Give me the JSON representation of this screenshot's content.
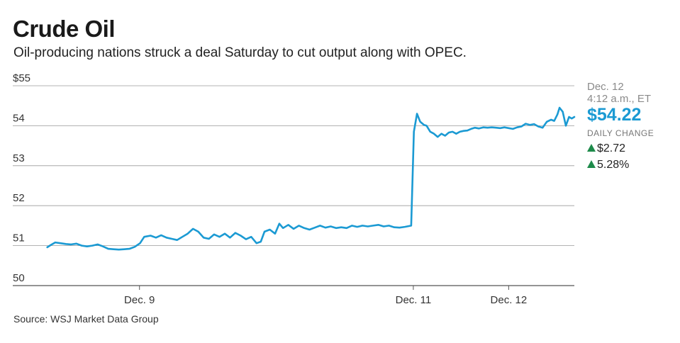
{
  "title": "Crude Oil",
  "subtitle": "Oil-producing nations struck a deal Saturday to cut output along with OPEC.",
  "source": "Source: WSJ Market Data Group",
  "sidebar": {
    "date": "Dec. 12",
    "time": "4:12 a.m., ET",
    "price": "$54.22",
    "daily_change_label": "DAILY CHANGE",
    "change_dollar": "$2.72",
    "change_percent": "5.28%"
  },
  "colors": {
    "line": "#1b9ad3",
    "up": "#1d8a4a",
    "grid": "#9a9a9a"
  },
  "chart_data": {
    "type": "line",
    "title": "Crude Oil",
    "ylim": [
      50,
      55
    ],
    "yticks": [
      {
        "value": 55,
        "label": "$55"
      },
      {
        "value": 54,
        "label": "54"
      },
      {
        "value": 53,
        "label": "53"
      },
      {
        "value": 52,
        "label": "52"
      },
      {
        "value": 51,
        "label": "51"
      },
      {
        "value": 50,
        "label": "50"
      }
    ],
    "xlim": [
      0,
      100
    ],
    "xticks": [
      {
        "value": 17.9,
        "label": "Dec. 9"
      },
      {
        "value": 69.6,
        "label": "Dec. 11"
      },
      {
        "value": 87.6,
        "label": "Dec. 12"
      }
    ],
    "series": [
      {
        "values": [
          [
            0.5,
            50.96
          ],
          [
            1.2,
            51.02
          ],
          [
            2,
            51.08
          ],
          [
            3,
            51.06
          ],
          [
            4,
            51.04
          ],
          [
            5,
            51.03
          ],
          [
            6,
            51.05
          ],
          [
            7,
            51.0
          ],
          [
            8,
            50.98
          ],
          [
            9,
            51.0
          ],
          [
            10,
            51.03
          ],
          [
            11,
            50.98
          ],
          [
            12,
            50.92
          ],
          [
            13,
            50.91
          ],
          [
            14,
            50.9
          ],
          [
            15,
            50.91
          ],
          [
            16,
            50.92
          ],
          [
            17,
            50.97
          ],
          [
            18,
            51.06
          ],
          [
            18.8,
            51.22
          ],
          [
            20,
            51.25
          ],
          [
            21,
            51.2
          ],
          [
            22,
            51.26
          ],
          [
            23,
            51.2
          ],
          [
            24,
            51.17
          ],
          [
            25,
            51.14
          ],
          [
            26,
            51.22
          ],
          [
            27,
            51.3
          ],
          [
            28,
            51.42
          ],
          [
            29,
            51.35
          ],
          [
            30,
            51.2
          ],
          [
            31,
            51.17
          ],
          [
            32,
            51.28
          ],
          [
            33,
            51.22
          ],
          [
            34,
            51.3
          ],
          [
            35,
            51.2
          ],
          [
            36,
            51.32
          ],
          [
            37,
            51.25
          ],
          [
            38,
            51.16
          ],
          [
            39,
            51.22
          ],
          [
            40,
            51.06
          ],
          [
            40.8,
            51.1
          ],
          [
            41.5,
            51.35
          ],
          [
            42.5,
            51.4
          ],
          [
            43.5,
            51.3
          ],
          [
            44.3,
            51.55
          ],
          [
            45,
            51.44
          ],
          [
            46,
            51.52
          ],
          [
            47,
            51.42
          ],
          [
            48,
            51.5
          ],
          [
            49,
            51.44
          ],
          [
            50,
            51.4
          ],
          [
            51,
            51.45
          ],
          [
            52,
            51.5
          ],
          [
            53,
            51.45
          ],
          [
            54,
            51.48
          ],
          [
            55,
            51.44
          ],
          [
            56,
            51.46
          ],
          [
            57,
            51.44
          ],
          [
            58,
            51.5
          ],
          [
            59,
            51.47
          ],
          [
            60,
            51.5
          ],
          [
            61,
            51.48
          ],
          [
            62,
            51.5
          ],
          [
            63,
            51.52
          ],
          [
            64,
            51.48
          ],
          [
            65,
            51.5
          ],
          [
            66,
            51.46
          ],
          [
            67,
            51.45
          ],
          [
            68,
            51.47
          ],
          [
            69.2,
            51.5
          ],
          [
            69.7,
            53.85
          ],
          [
            70.3,
            54.3
          ],
          [
            70.9,
            54.1
          ],
          [
            71.6,
            54.02
          ],
          [
            72.1,
            54.0
          ],
          [
            72.8,
            53.85
          ],
          [
            73.5,
            53.8
          ],
          [
            74.2,
            53.72
          ],
          [
            74.9,
            53.8
          ],
          [
            75.6,
            53.75
          ],
          [
            76.3,
            53.83
          ],
          [
            77,
            53.85
          ],
          [
            77.7,
            53.8
          ],
          [
            78.4,
            53.85
          ],
          [
            79.1,
            53.87
          ],
          [
            79.8,
            53.88
          ],
          [
            80.5,
            53.92
          ],
          [
            81.2,
            53.95
          ],
          [
            82,
            53.93
          ],
          [
            82.8,
            53.96
          ],
          [
            83.6,
            53.95
          ],
          [
            84.4,
            53.96
          ],
          [
            85.2,
            53.95
          ],
          [
            86,
            53.94
          ],
          [
            86.8,
            53.96
          ],
          [
            87.6,
            53.94
          ],
          [
            88.4,
            53.92
          ],
          [
            89.2,
            53.96
          ],
          [
            90,
            53.98
          ],
          [
            90.8,
            54.05
          ],
          [
            91.6,
            54.02
          ],
          [
            92.4,
            54.04
          ],
          [
            93.2,
            53.98
          ],
          [
            94,
            53.95
          ],
          [
            94.8,
            54.1
          ],
          [
            95.6,
            54.15
          ],
          [
            96.2,
            54.12
          ],
          [
            96.8,
            54.28
          ],
          [
            97.2,
            54.45
          ],
          [
            97.8,
            54.35
          ],
          [
            98.4,
            54.0
          ],
          [
            99,
            54.22
          ],
          [
            99.5,
            54.18
          ],
          [
            100,
            54.22
          ]
        ]
      }
    ]
  }
}
